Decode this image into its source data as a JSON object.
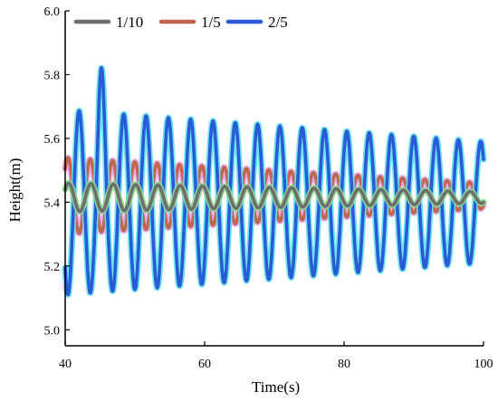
{
  "chart_data": {
    "type": "line",
    "title": "",
    "xlabel": "Time(s)",
    "ylabel": "Height(m)",
    "xlim": [
      40,
      100
    ],
    "ylim": [
      4.95,
      6.0
    ],
    "xticks": [
      40,
      60,
      80,
      100
    ],
    "yticks": [
      5.0,
      5.2,
      5.4,
      5.6,
      5.8,
      6.0
    ],
    "ytick_labels": [
      "5.0",
      "5.2",
      "5.4",
      "5.6",
      "5.8",
      "6.0"
    ],
    "legend_position": "top-left",
    "grid": false,
    "series": [
      {
        "name": "1/10",
        "color": "#6e6e6e",
        "halo": "#8fd88f",
        "period_s": 3.2,
        "mean_m": 5.415,
        "amplitude_start_m": 0.045,
        "amplitude_end_m": 0.018,
        "peak_time_s": 40.5
      },
      {
        "name": "1/5",
        "color": "#c0664a",
        "halo": "#e7a0e7",
        "period_s": 3.2,
        "mean_m": 5.42,
        "amplitude_start_m": 0.12,
        "amplitude_end_m": 0.04,
        "peak_time_s": 40.4
      },
      {
        "name": "2/5",
        "color": "#2a5bd7",
        "halo": "#5ee0ee",
        "period_s": 3.2,
        "mean_m": 5.4,
        "amplitude_start_m": 0.29,
        "amplitude_end_m": 0.19,
        "peak_time_s": 42.0,
        "max_peak": {
          "x": 45.2,
          "y": 5.83
        },
        "min_trough": {
          "x": 40.6,
          "y": 5.04
        }
      }
    ]
  }
}
